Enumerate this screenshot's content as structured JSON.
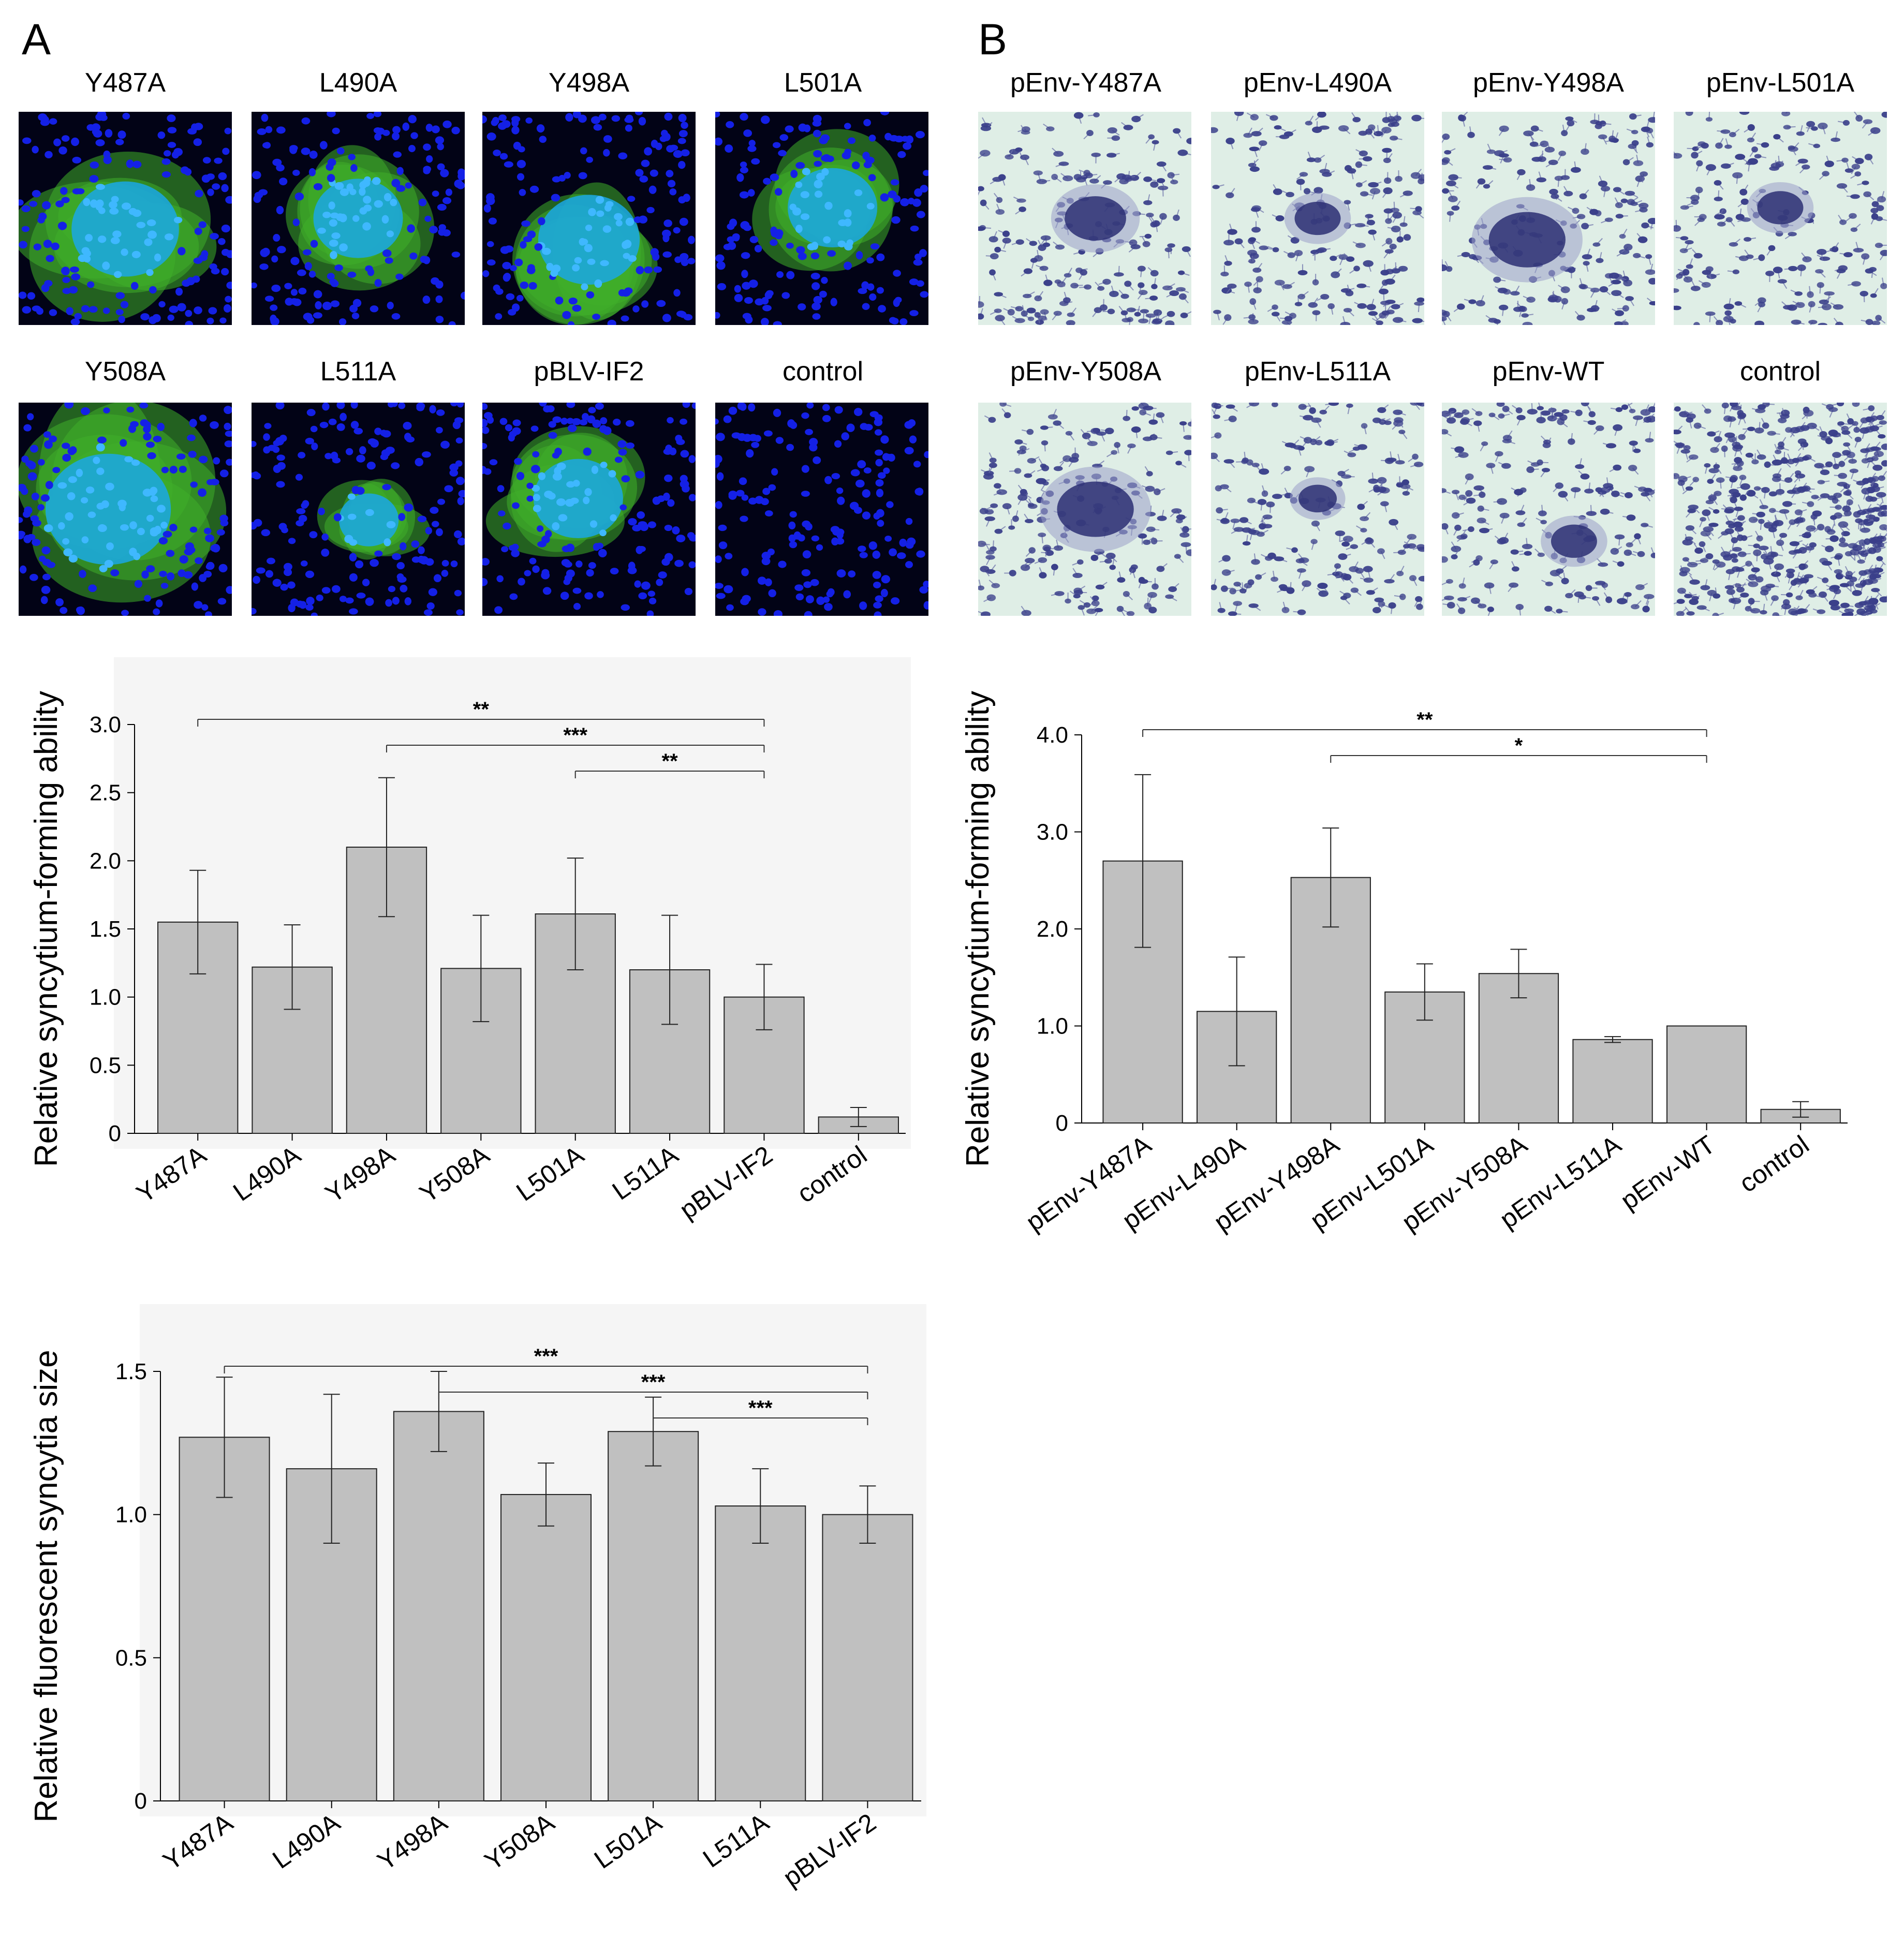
{
  "panels": {
    "a": {
      "letter": "A",
      "images_row1": [
        "Y487A",
        "L490A",
        "Y498A",
        "L501A"
      ],
      "images_row2": [
        "Y508A",
        "L511A",
        "pBLV-IF2",
        "control"
      ],
      "image_style": "fluorescence-blue-nuclei-green-syncytia",
      "colors": {
        "nuclei": "#1420e6",
        "syncytium": "#3fae2a",
        "background": "#020316"
      }
    },
    "b": {
      "letter": "B",
      "images_row1": [
        "pEnv-Y487A",
        "pEnv-L490A",
        "pEnv-Y498A",
        "pEnv-L501A"
      ],
      "images_row2": [
        "pEnv-Y508A",
        "pEnv-L511A",
        "pEnv-WT",
        "control"
      ],
      "image_style": "giemsa-stain-purple-cells",
      "colors": {
        "cells": "#3a3f8a",
        "background": "#dfeee6"
      }
    }
  },
  "chart_data": [
    {
      "id": "chart-a-top",
      "type": "bar",
      "categories": [
        "Y487A",
        "L490A",
        "Y498A",
        "Y508A",
        "L501A",
        "L511A",
        "pBLV-IF2",
        "control"
      ],
      "values": [
        1.55,
        1.22,
        2.1,
        1.21,
        1.61,
        1.2,
        1.0,
        0.12
      ],
      "errors": [
        0.38,
        0.31,
        0.51,
        0.39,
        0.41,
        0.4,
        0.24,
        0.07
      ],
      "ylabel": "Relative syncytium-forming ability",
      "xlabel": "",
      "ylim": [
        0,
        3.0
      ],
      "yticks": [
        "0",
        "0.5",
        "1.0",
        "1.5",
        "2.0",
        "2.5",
        "3.0"
      ],
      "grid": false,
      "background": "#f5f5f5",
      "bar_color": "#c0c0c0",
      "significance": [
        {
          "from": 0,
          "to": 6,
          "label": "**"
        },
        {
          "from": 2,
          "to": 6,
          "label": "***"
        },
        {
          "from": 4,
          "to": 6,
          "label": "**"
        }
      ]
    },
    {
      "id": "chart-b-top",
      "type": "bar",
      "categories": [
        "pEnv-Y487A",
        "pEnv-L490A",
        "pEnv-Y498A",
        "pEnv-L501A",
        "pEnv-Y508A",
        "pEnv-L511A",
        "pEnv-WT",
        "control"
      ],
      "values": [
        2.7,
        1.15,
        2.53,
        1.35,
        1.54,
        0.86,
        1.0,
        0.14
      ],
      "errors": [
        0.89,
        0.56,
        0.51,
        0.29,
        0.25,
        0.03,
        0.0,
        0.08
      ],
      "ylabel": "Relative syncytium-forming ability",
      "xlabel": "",
      "ylim": [
        0,
        4.0
      ],
      "yticks": [
        "0",
        "1.0",
        "2.0",
        "3.0",
        "4.0"
      ],
      "grid": false,
      "background": "#ffffff",
      "bar_color": "#c0c0c0",
      "significance": [
        {
          "from": 0,
          "to": 6,
          "label": "**"
        },
        {
          "from": 2,
          "to": 6,
          "label": "*"
        }
      ]
    },
    {
      "id": "chart-a-bottom",
      "type": "bar",
      "categories": [
        "Y487A",
        "L490A",
        "Y498A",
        "Y508A",
        "L501A",
        "L511A",
        "pBLV-IF2"
      ],
      "values": [
        1.27,
        1.16,
        1.36,
        1.07,
        1.29,
        1.03,
        1.0
      ],
      "errors": [
        0.21,
        0.26,
        0.14,
        0.11,
        0.12,
        0.13,
        0.1
      ],
      "ylabel": "Relative fluorescent syncytia size",
      "xlabel": "",
      "ylim": [
        0,
        1.5
      ],
      "yticks": [
        "0",
        "0.5",
        "1.0",
        "1.5"
      ],
      "grid": false,
      "background": "#f5f5f5",
      "bar_color": "#c0c0c0",
      "significance": [
        {
          "from": 0,
          "to": 6,
          "label": "***"
        },
        {
          "from": 2,
          "to": 6,
          "label": "***"
        },
        {
          "from": 4,
          "to": 6,
          "label": "***"
        }
      ]
    }
  ]
}
